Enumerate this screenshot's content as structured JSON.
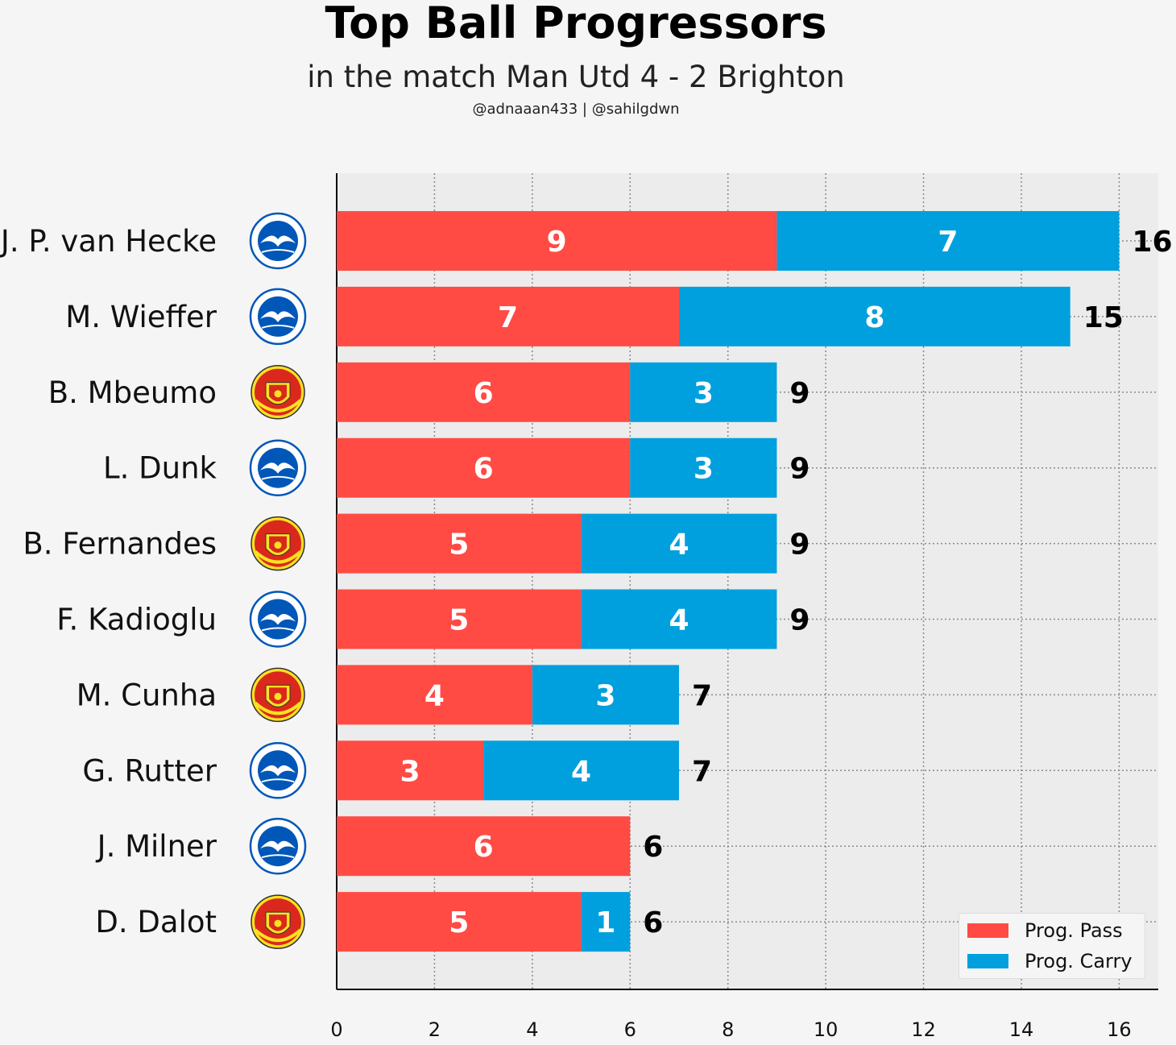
{
  "header": {
    "title": "Top Ball Progressors",
    "subtitle": "in the match Man Utd 4 - 2 Brighton",
    "credits": "@adnaaan433  | @sahilgdwn"
  },
  "colors": {
    "pass": "#ff4b44",
    "carry": "#00a0de",
    "plot_bg": "#ececec",
    "brighton_blue": "#0057b8",
    "manutd_red": "#da291c",
    "manutd_gold": "#fbe122"
  },
  "chart_data": {
    "type": "bar",
    "orientation": "horizontal",
    "stacked": true,
    "categories": [
      "J. P. van Hecke",
      "M. Wieffer",
      "B. Mbeumo",
      "L. Dunk",
      "B. Fernandes",
      "F. Kadioglu",
      "M. Cunha",
      "G. Rutter",
      "J. Milner",
      "D. Dalot"
    ],
    "teams": [
      "brighton",
      "brighton",
      "manutd",
      "brighton",
      "manutd",
      "brighton",
      "manutd",
      "brighton",
      "brighton",
      "manutd"
    ],
    "series": [
      {
        "name": "Prog. Pass",
        "values": [
          9,
          7,
          6,
          6,
          5,
          5,
          4,
          3,
          6,
          5
        ]
      },
      {
        "name": "Prog. Carry",
        "values": [
          7,
          8,
          3,
          3,
          4,
          4,
          3,
          4,
          0,
          1
        ]
      }
    ],
    "totals": [
      16,
      15,
      9,
      9,
      9,
      9,
      7,
      7,
      6,
      6
    ],
    "xlim": [
      0,
      16.8
    ],
    "xticks": [
      0,
      2,
      4,
      6,
      8,
      10,
      12,
      14,
      16
    ],
    "grid": true,
    "legend_position": "bottom-right"
  }
}
